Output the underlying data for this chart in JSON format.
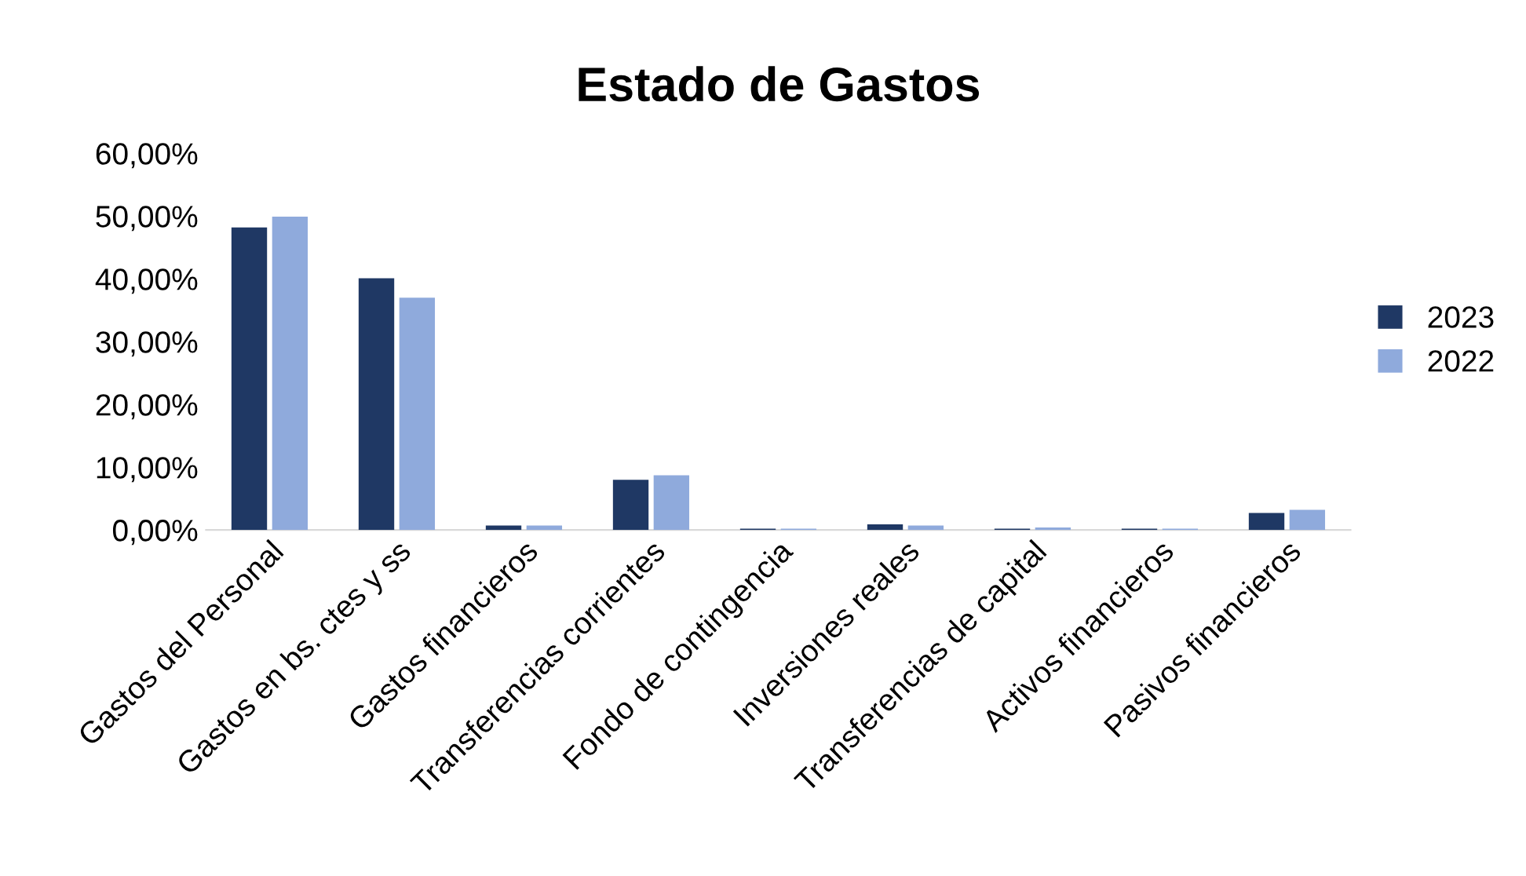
{
  "chart_data": {
    "type": "bar",
    "title": "Estado de Gastos",
    "categories": [
      "Gastos del Personal",
      "Gastos en bs. ctes y ss",
      "Gastos financieros",
      "Transferencias corrientes",
      "Fondo de contingencia",
      "Inversiones reales",
      "Transferencias de capital",
      "Activos financieros",
      "Pasivos financieros"
    ],
    "series": [
      {
        "name": "2023",
        "color": "#1f3864",
        "values": [
          48.2,
          40.1,
          0.7,
          8.0,
          0.2,
          0.9,
          0.2,
          0.2,
          2.7
        ]
      },
      {
        "name": "2022",
        "color": "#8faadc",
        "values": [
          49.9,
          37.0,
          0.7,
          8.7,
          0.2,
          0.7,
          0.4,
          0.2,
          3.2
        ]
      }
    ],
    "ylim": [
      0,
      60
    ],
    "yticks": [
      {
        "value": 0,
        "label": "0,00%"
      },
      {
        "value": 10,
        "label": "10,00%"
      },
      {
        "value": 20,
        "label": "20,00%"
      },
      {
        "value": 30,
        "label": "30,00%"
      },
      {
        "value": 40,
        "label": "40,00%"
      },
      {
        "value": 50,
        "label": "50,00%"
      },
      {
        "value": 60,
        "label": "60,00%"
      }
    ],
    "grid": false,
    "legend": "right"
  }
}
